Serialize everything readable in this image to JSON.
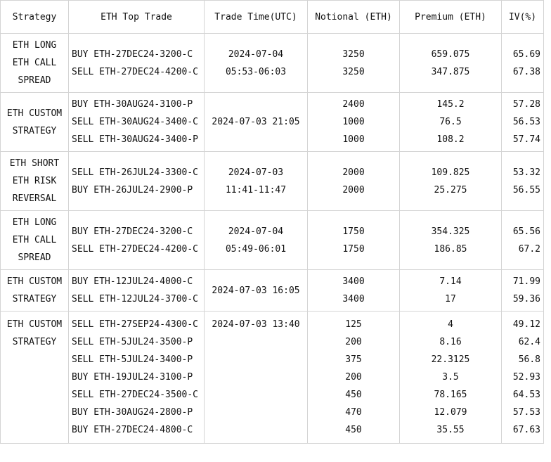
{
  "table": {
    "header": [
      "Strategy",
      "ETH Top Trade",
      "Trade Time(UTC)",
      "Notional (ETH)",
      "Premium (ETH)",
      "IV(%)"
    ],
    "rows": [
      {
        "strategy": [
          "ETH LONG",
          "ETH CALL",
          "SPREAD"
        ],
        "trades": [
          "BUY ETH-27DEC24-3200-C",
          "SELL ETH-27DEC24-4200-C"
        ],
        "time": [
          "2024-07-04",
          "05:53-06:03"
        ],
        "notional": [
          3250,
          3250
        ],
        "premium": [
          659.075,
          347.875
        ],
        "iv": [
          65.69,
          67.38
        ]
      },
      {
        "strategy": [
          "ETH CUSTOM",
          "STRATEGY"
        ],
        "trades": [
          "BUY ETH-30AUG24-3100-P",
          "SELL ETH-30AUG24-3400-C",
          "SELL ETH-30AUG24-3400-P"
        ],
        "time": [
          "2024-07-03 21:05"
        ],
        "notional": [
          2400,
          1000,
          1000
        ],
        "premium": [
          145.2,
          76.5,
          108.2
        ],
        "iv": [
          57.28,
          56.53,
          57.74
        ]
      },
      {
        "strategy": [
          "ETH SHORT",
          "ETH RISK",
          "REVERSAL"
        ],
        "trades": [
          "SELL ETH-26JUL24-3300-C",
          "BUY ETH-26JUL24-2900-P"
        ],
        "time": [
          "2024-07-03",
          "11:41-11:47"
        ],
        "notional": [
          2000,
          2000
        ],
        "premium": [
          109.825,
          25.275
        ],
        "iv": [
          53.32,
          56.55
        ]
      },
      {
        "strategy": [
          "ETH LONG",
          "ETH CALL",
          "SPREAD"
        ],
        "trades": [
          "BUY ETH-27DEC24-3200-C",
          "SELL ETH-27DEC24-4200-C"
        ],
        "time": [
          "2024-07-04",
          "05:49-06:01"
        ],
        "notional": [
          1750,
          1750
        ],
        "premium": [
          354.325,
          186.85
        ],
        "iv": [
          65.56,
          67.2
        ]
      },
      {
        "strategy": [
          "ETH CUSTOM",
          "STRATEGY"
        ],
        "trades": [
          "BUY ETH-12JUL24-4000-C",
          "SELL ETH-12JUL24-3700-C"
        ],
        "time": [
          "2024-07-03 16:05"
        ],
        "notional": [
          3400,
          3400
        ],
        "premium": [
          7.14,
          17
        ],
        "iv": [
          71.99,
          59.36
        ]
      },
      {
        "strategy": [
          "ETH CUSTOM",
          "STRATEGY"
        ],
        "trades": [
          "SELL ETH-27SEP24-4300-C",
          "SELL ETH-5JUL24-3500-P",
          "SELL ETH-5JUL24-3400-P",
          "BUY ETH-19JUL24-3100-P",
          "SELL ETH-27DEC24-3500-C",
          "BUY ETH-30AUG24-2800-P",
          "BUY ETH-27DEC24-4800-C"
        ],
        "time": [
          "2024-07-03 13:40"
        ],
        "notional": [
          125,
          200,
          375,
          200,
          450,
          470,
          450
        ],
        "premium": [
          4,
          8.16,
          22.3125,
          3.5,
          78.165,
          12.079,
          35.55
        ],
        "iv": [
          49.12,
          62.4,
          56.8,
          52.93,
          64.53,
          57.53,
          67.63
        ]
      }
    ]
  }
}
